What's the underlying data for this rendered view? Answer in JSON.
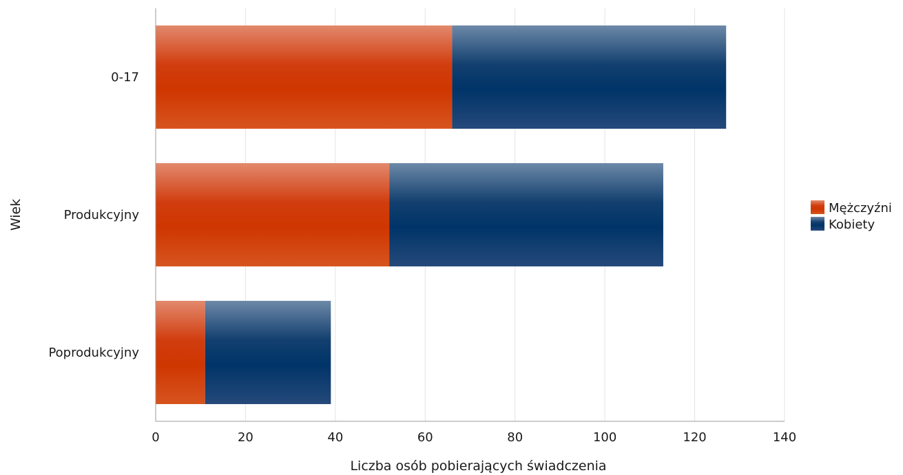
{
  "chart_data": {
    "type": "bar",
    "orientation": "horizontal",
    "stacked": true,
    "categories": [
      "0-17",
      "Produkcyjny",
      "Poprodukcyjny"
    ],
    "series": [
      {
        "name": "Mężczyźni",
        "values": [
          66,
          52,
          11
        ],
        "color": "#d03a0c"
      },
      {
        "name": "Kobiety",
        "values": [
          61,
          61,
          28
        ],
        "color": "#063a6e"
      }
    ],
    "xlabel": "Liczba osób pobierających świadczenia",
    "ylabel": "Wiek",
    "xlim": [
      0,
      140
    ],
    "xticks": [
      "0",
      "20",
      "40",
      "60",
      "80",
      "100",
      "120",
      "140"
    ],
    "xtick_values": [
      0,
      20,
      40,
      60,
      80,
      100,
      120,
      140
    ],
    "grid": true,
    "legend_position": "right"
  }
}
